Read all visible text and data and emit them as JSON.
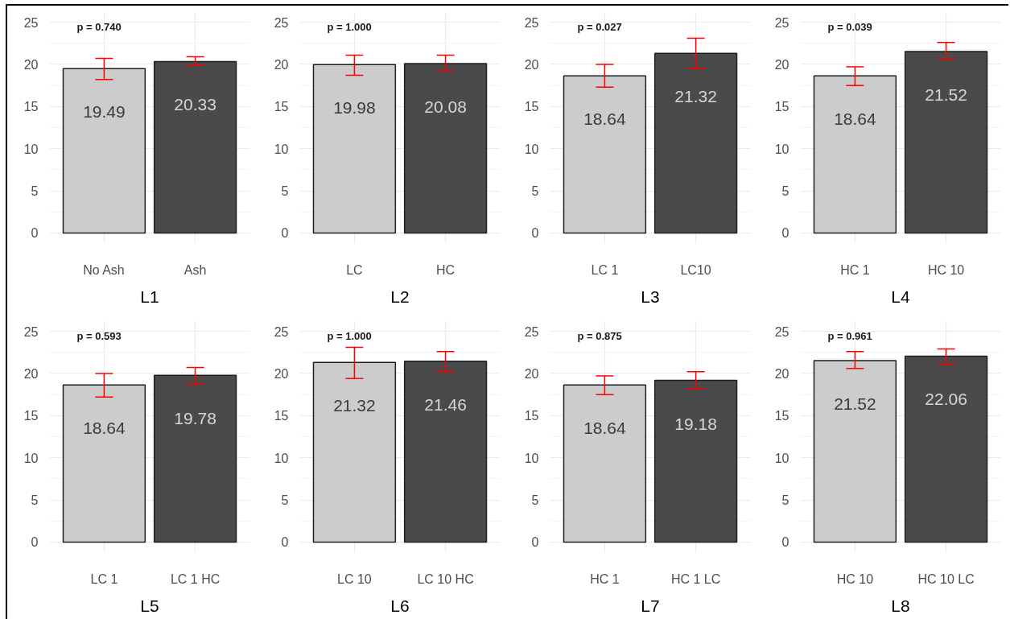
{
  "chart_data": [
    {
      "type": "bar",
      "xlabel": "L1",
      "categories": [
        "No Ash",
        "Ash"
      ],
      "colors": [
        "#cccccc",
        "#4a4a4a"
      ],
      "values": [
        19.49,
        20.33
      ],
      "errors": [
        [
          18.2,
          20.7
        ],
        [
          19.9,
          20.9
        ]
      ],
      "data_labels": true,
      "annotations": [
        "p = 0.740"
      ],
      "ylim": [
        -1.25,
        26.25
      ],
      "yticks": [
        0,
        5,
        10,
        15,
        20,
        25
      ],
      "grid": true
    },
    {
      "type": "bar",
      "xlabel": "L2",
      "categories": [
        "LC",
        "HC"
      ],
      "colors": [
        "#cccccc",
        "#4a4a4a"
      ],
      "values": [
        19.98,
        20.08
      ],
      "errors": [
        [
          18.7,
          21.1
        ],
        [
          19.2,
          21.1
        ]
      ],
      "data_labels": true,
      "annotations": [
        "p = 1.000"
      ],
      "ylim": [
        -1.25,
        26.25
      ],
      "yticks": [
        0,
        5,
        10,
        15,
        20,
        25
      ],
      "grid": true
    },
    {
      "type": "bar",
      "xlabel": "L3",
      "categories": [
        "LC 1",
        "LC10"
      ],
      "colors": [
        "#cccccc",
        "#4a4a4a"
      ],
      "values": [
        18.64,
        21.32
      ],
      "errors": [
        [
          17.3,
          20.0
        ],
        [
          19.5,
          23.1
        ]
      ],
      "data_labels": true,
      "annotations": [
        "p = 0.027"
      ],
      "ylim": [
        -1.25,
        26.25
      ],
      "yticks": [
        0,
        5,
        10,
        15,
        20,
        25
      ],
      "grid": true
    },
    {
      "type": "bar",
      "xlabel": "L4",
      "categories": [
        "HC 1",
        "HC 10"
      ],
      "colors": [
        "#cccccc",
        "#4a4a4a"
      ],
      "values": [
        18.64,
        21.52
      ],
      "errors": [
        [
          17.5,
          19.7
        ],
        [
          20.6,
          22.6
        ]
      ],
      "data_labels": true,
      "annotations": [
        "p = 0.039"
      ],
      "ylim": [
        -1.25,
        26.25
      ],
      "yticks": [
        0,
        5,
        10,
        15,
        20,
        25
      ],
      "grid": true
    },
    {
      "type": "bar",
      "xlabel": "L5",
      "categories": [
        "LC 1",
        "LC 1 HC"
      ],
      "colors": [
        "#cccccc",
        "#4a4a4a"
      ],
      "values": [
        18.64,
        19.78
      ],
      "errors": [
        [
          17.2,
          20.0
        ],
        [
          18.7,
          20.7
        ]
      ],
      "data_labels": true,
      "annotations": [
        "p = 0.593"
      ],
      "ylim": [
        -1.25,
        26.25
      ],
      "yticks": [
        0,
        5,
        10,
        15,
        20,
        25
      ],
      "grid": true
    },
    {
      "type": "bar",
      "xlabel": "L6",
      "categories": [
        "LC 10",
        "LC 10 HC"
      ],
      "colors": [
        "#cccccc",
        "#4a4a4a"
      ],
      "values": [
        21.32,
        21.46
      ],
      "errors": [
        [
          19.4,
          23.1
        ],
        [
          20.2,
          22.6
        ]
      ],
      "data_labels": true,
      "annotations": [
        "p = 1.000"
      ],
      "ylim": [
        -1.25,
        26.25
      ],
      "yticks": [
        0,
        5,
        10,
        15,
        20,
        25
      ],
      "grid": true
    },
    {
      "type": "bar",
      "xlabel": "L7",
      "categories": [
        "HC 1",
        "HC 1 LC"
      ],
      "colors": [
        "#cccccc",
        "#4a4a4a"
      ],
      "values": [
        18.64,
        19.18
      ],
      "errors": [
        [
          17.5,
          19.7
        ],
        [
          18.2,
          20.2
        ]
      ],
      "data_labels": true,
      "annotations": [
        "p = 0.875"
      ],
      "ylim": [
        -1.25,
        26.25
      ],
      "yticks": [
        0,
        5,
        10,
        15,
        20,
        25
      ],
      "grid": true
    },
    {
      "type": "bar",
      "xlabel": "L8",
      "categories": [
        "HC 10",
        "HC 10 LC"
      ],
      "colors": [
        "#cccccc",
        "#4a4a4a"
      ],
      "values": [
        21.52,
        22.06
      ],
      "errors": [
        [
          20.6,
          22.6
        ],
        [
          21.1,
          22.9
        ]
      ],
      "data_labels": true,
      "annotations": [
        "p = 0.961"
      ],
      "ylim": [
        -1.25,
        26.25
      ],
      "yticks": [
        0,
        5,
        10,
        15,
        20,
        25
      ],
      "grid": true
    }
  ]
}
